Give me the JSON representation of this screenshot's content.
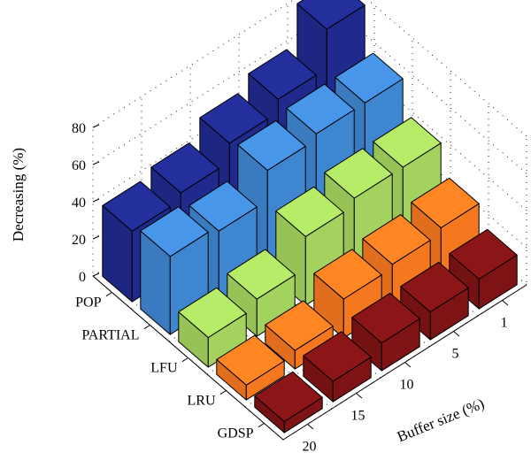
{
  "chart_data": {
    "type": "bar3d",
    "title": "",
    "zlabel": "Decreasing (%)",
    "ylabel": "Buffer size (%)",
    "zlim": [
      0,
      80
    ],
    "zticks": [
      "0",
      "20",
      "40",
      "60",
      "80"
    ],
    "buffer_sizes": [
      "1",
      "5",
      "10",
      "15",
      "20"
    ],
    "grid": true,
    "series": [
      {
        "name": "GDSP",
        "color": "#1f2a8c",
        "values": [
          80,
          59,
          52,
          42,
          38
        ]
      },
      {
        "name": "LRU",
        "color": "#3f86d1",
        "values": [
          58,
          58,
          55,
          39,
          42
        ]
      },
      {
        "name": "LFU",
        "color": "#a3d35e",
        "values": [
          41,
          41,
          37,
          20,
          16
        ]
      },
      {
        "name": "PARTIAL",
        "color": "#f5781e",
        "values": [
          26,
          23,
          21,
          10,
          8
        ]
      },
      {
        "name": "POP",
        "color": "#7d1315",
        "values": [
          16,
          15,
          15,
          11,
          6
        ]
      }
    ]
  }
}
